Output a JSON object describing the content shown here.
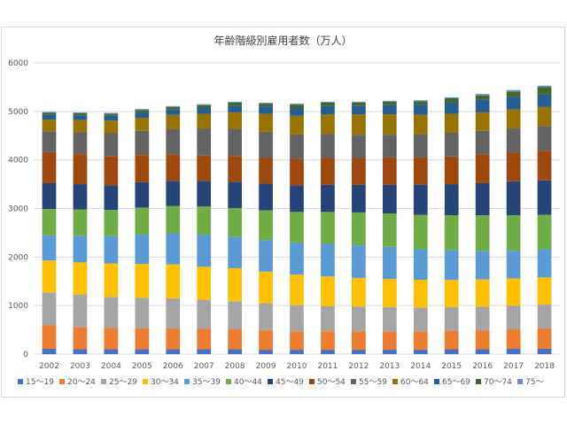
{
  "chart_data": {
    "type": "bar",
    "stacked": true,
    "title": "年齢階級別雇用者数（万人）",
    "xlabel": "",
    "ylabel": "",
    "ylim": [
      0,
      6000
    ],
    "yticks": [
      0,
      1000,
      2000,
      3000,
      4000,
      5000,
      6000
    ],
    "grid": true,
    "legend_position": "bottom",
    "categories": [
      "2002",
      "2003",
      "2004",
      "2005",
      "2006",
      "2007",
      "2008",
      "2009",
      "2010",
      "2011",
      "2012",
      "2013",
      "2014",
      "2015",
      "2016",
      "2017",
      "2018"
    ],
    "series": [
      {
        "name": "15～19",
        "color": "#4472c4",
        "values": [
          110,
          100,
          100,
          100,
          100,
          100,
          100,
          90,
          90,
          90,
          90,
          90,
          90,
          100,
          100,
          110,
          110
        ]
      },
      {
        "name": "20～24",
        "color": "#ed7d31",
        "values": [
          490,
          460,
          440,
          430,
          430,
          420,
          410,
          400,
          380,
          380,
          380,
          380,
          380,
          380,
          390,
          400,
          420
        ]
      },
      {
        "name": "25～29",
        "color": "#a5a5a5",
        "values": [
          670,
          670,
          640,
          630,
          620,
          600,
          580,
          560,
          540,
          520,
          510,
          500,
          490,
          490,
          490,
          490,
          490
        ]
      },
      {
        "name": "30～34",
        "color": "#ffc000",
        "values": [
          660,
          660,
          690,
          700,
          700,
          680,
          680,
          650,
          630,
          610,
          590,
          580,
          570,
          560,
          560,
          560,
          560
        ]
      },
      {
        "name": "35～39",
        "color": "#5b9bd5",
        "values": [
          520,
          550,
          560,
          600,
          640,
          660,
          650,
          650,
          660,
          670,
          670,
          660,
          630,
          610,
          590,
          570,
          580
        ]
      },
      {
        "name": "40～44",
        "color": "#70ad47",
        "values": [
          540,
          540,
          540,
          560,
          560,
          580,
          590,
          610,
          630,
          660,
          680,
          690,
          710,
          720,
          730,
          730,
          710
        ]
      },
      {
        "name": "45～49",
        "color": "#264478",
        "values": [
          530,
          520,
          510,
          520,
          520,
          530,
          540,
          550,
          550,
          560,
          570,
          590,
          620,
          640,
          660,
          700,
          710
        ]
      },
      {
        "name": "50～54",
        "color": "#9e480e",
        "values": [
          640,
          620,
          600,
          560,
          540,
          520,
          530,
          530,
          540,
          550,
          550,
          560,
          560,
          570,
          590,
          590,
          610
        ]
      },
      {
        "name": "55～59",
        "color": "#636363",
        "values": [
          430,
          450,
          470,
          500,
          530,
          560,
          560,
          540,
          510,
          500,
          480,
          470,
          480,
          490,
          490,
          500,
          510
        ]
      },
      {
        "name": "60～64",
        "color": "#997300",
        "values": [
          240,
          250,
          260,
          270,
          290,
          300,
          340,
          370,
          380,
          400,
          420,
          420,
          400,
          390,
          380,
          390,
          390
        ]
      },
      {
        "name": "65～69",
        "color": "#255e91",
        "values": [
          100,
          100,
          100,
          110,
          110,
          120,
          140,
          150,
          160,
          170,
          170,
          190,
          210,
          240,
          260,
          260,
          260
        ]
      },
      {
        "name": "70～74",
        "color": "#43682b",
        "values": [
          40,
          40,
          40,
          50,
          50,
          60,
          60,
          60,
          70,
          70,
          70,
          70,
          70,
          80,
          90,
          110,
          150
        ]
      },
      {
        "name": "75～",
        "color": "#698ed0",
        "values": [
          20,
          20,
          20,
          20,
          20,
          20,
          20,
          20,
          20,
          20,
          20,
          20,
          20,
          20,
          30,
          30,
          30
        ]
      }
    ]
  }
}
